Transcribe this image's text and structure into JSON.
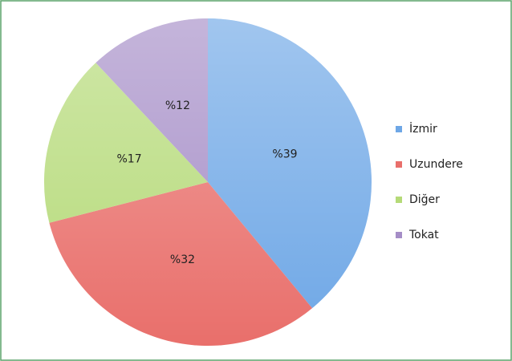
{
  "chart_data": {
    "type": "pie",
    "categories": [
      "İzmir",
      "Uzundere",
      "Diğer",
      "Tokat"
    ],
    "values": [
      39,
      32,
      17,
      12
    ],
    "value_labels": [
      "%39",
      "%32",
      "%17",
      "%12"
    ],
    "colors": [
      "#6ea7e6",
      "#e96f6b",
      "#b5da78",
      "#a58dc7"
    ],
    "legend": "right"
  }
}
